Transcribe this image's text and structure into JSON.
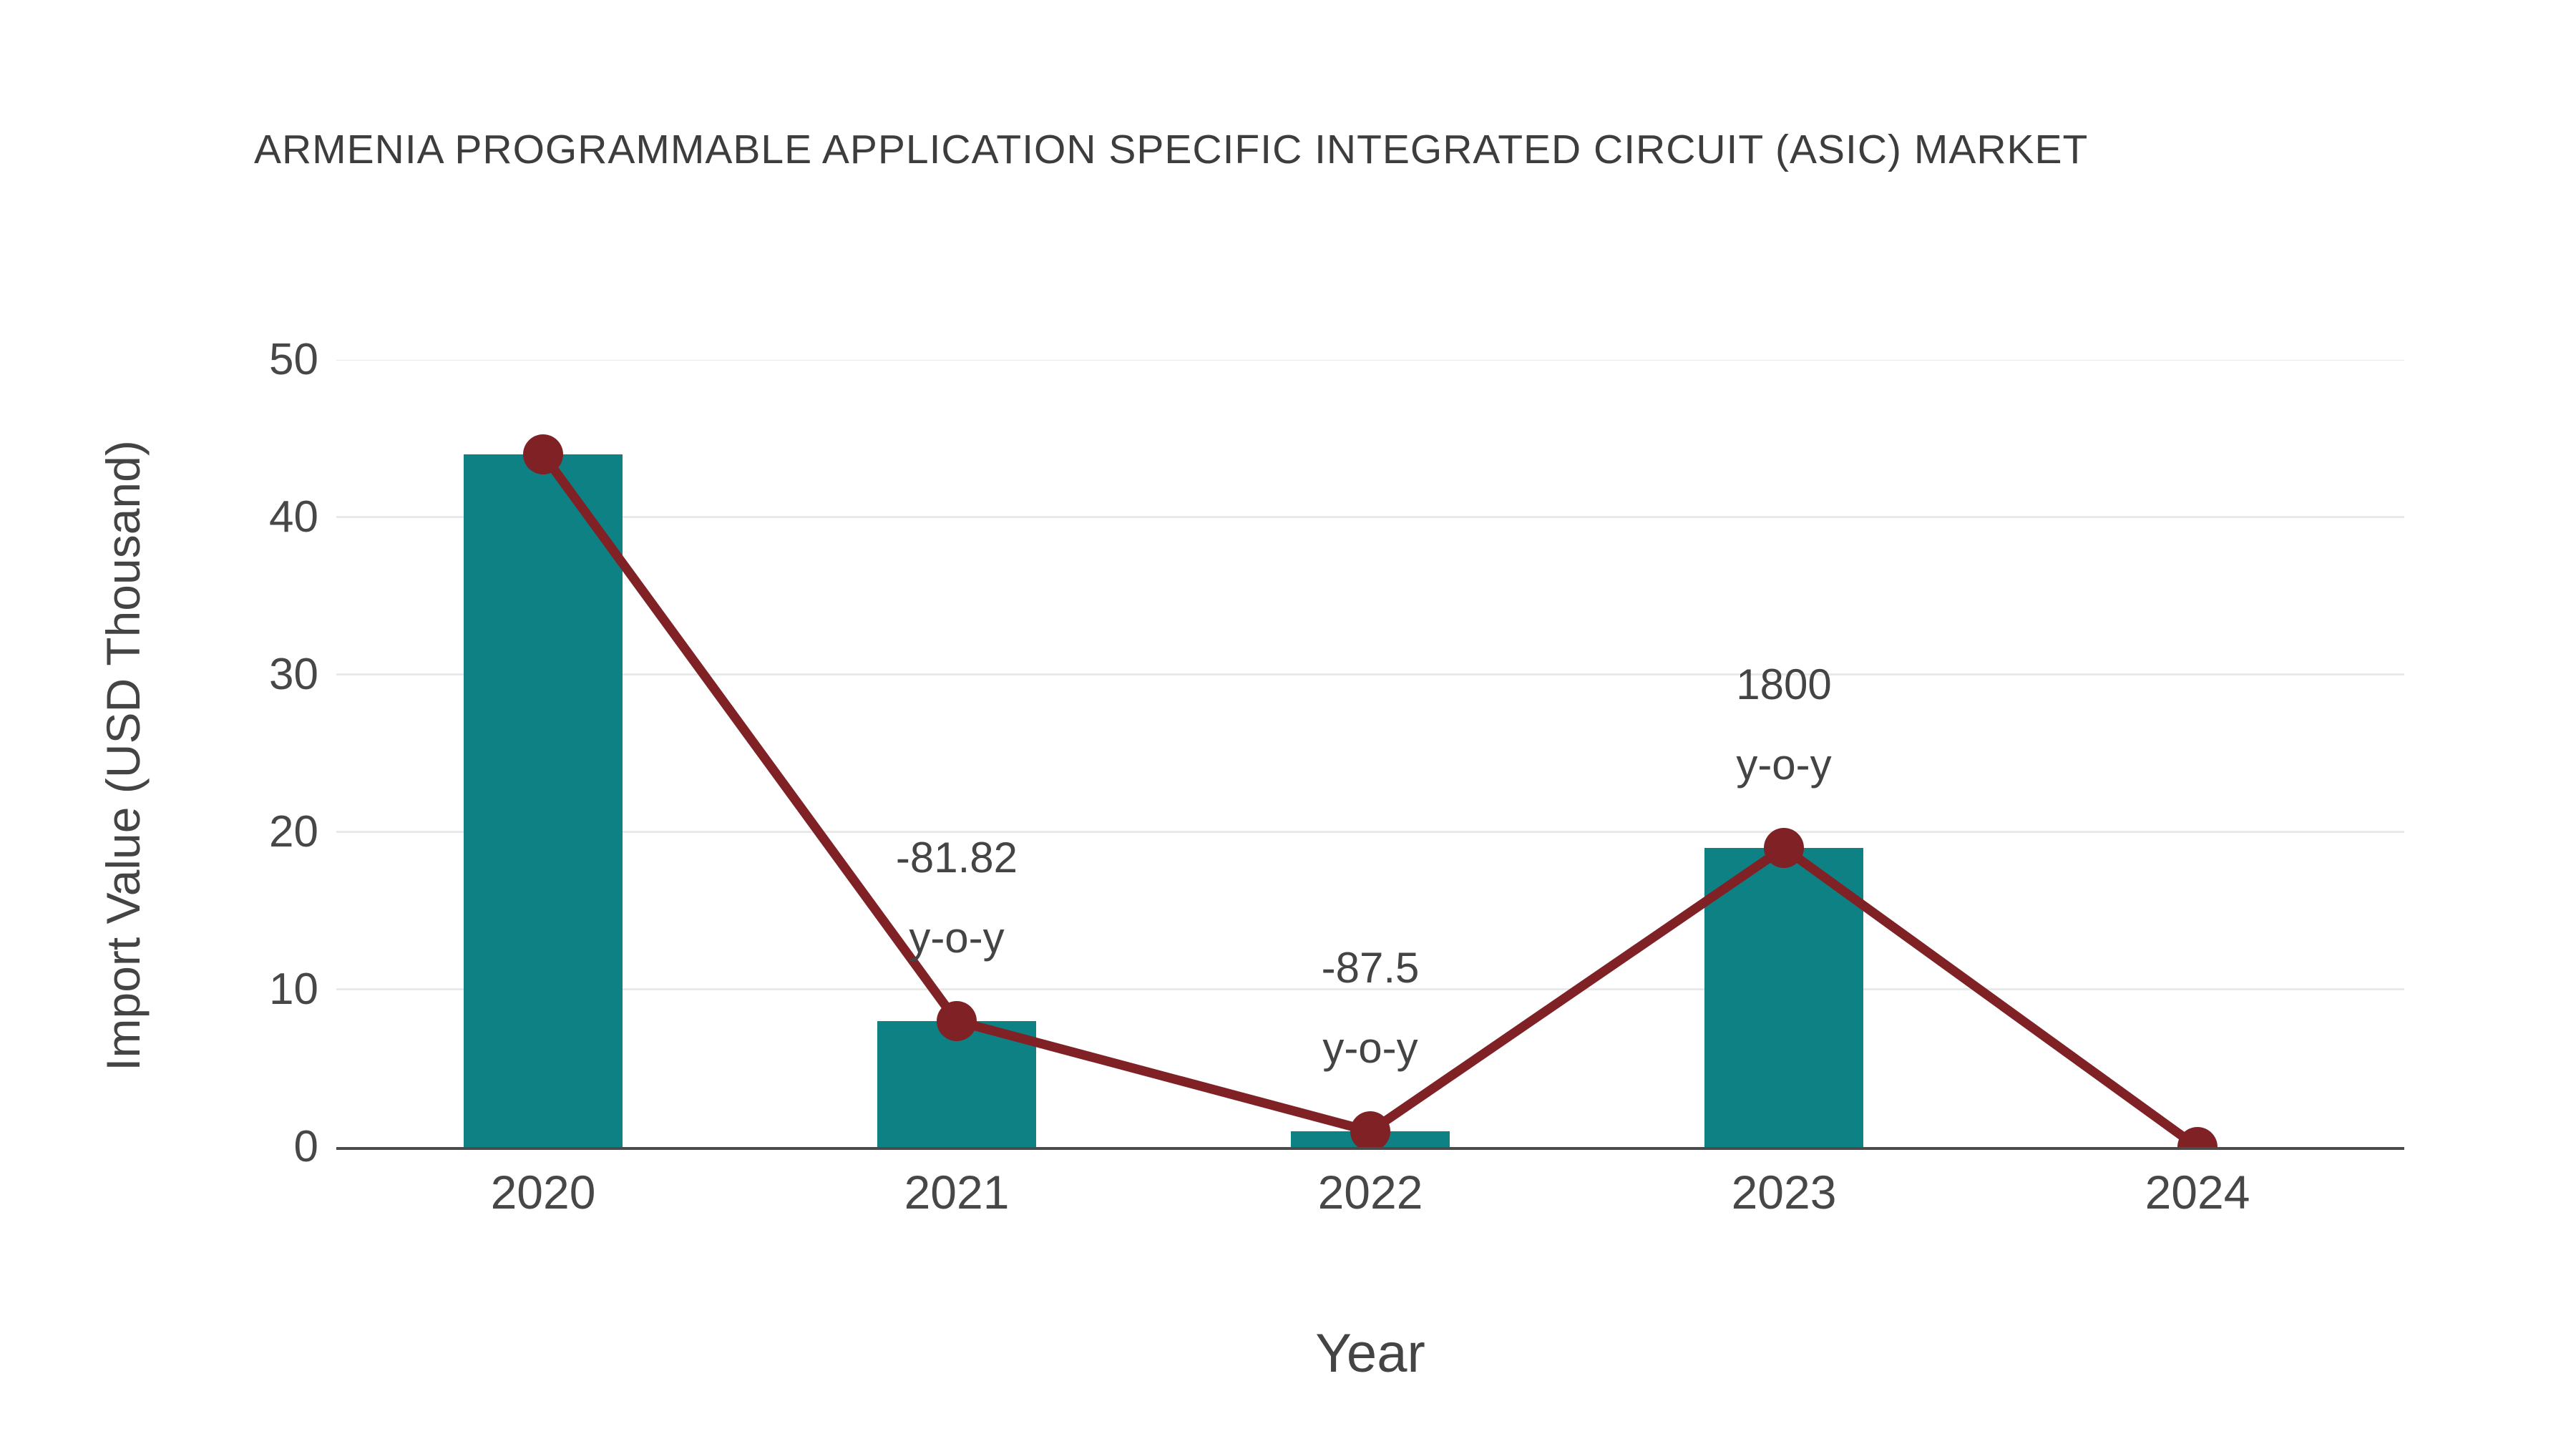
{
  "chart_data": {
    "type": "bar",
    "title": "ARMENIA PROGRAMMABLE APPLICATION SPECIFIC INTEGRATED CIRCUIT (ASIC) MARKET",
    "xlabel": "Year",
    "ylabel": "Import Value (USD Thousand)",
    "categories": [
      "2020",
      "2021",
      "2022",
      "2023",
      "2024"
    ],
    "series": [
      {
        "name": "Import Value bars",
        "type": "bar",
        "values": [
          44,
          8,
          1,
          19,
          0
        ],
        "color": "#0d8184"
      },
      {
        "name": "Import Value trend line",
        "type": "line",
        "values": [
          44,
          8,
          1,
          19,
          0
        ],
        "color": "#7f2125"
      }
    ],
    "annotations": [
      {
        "category": "2021",
        "line1": "-81.82",
        "line2": "y-o-y"
      },
      {
        "category": "2022",
        "line1": "-87.5",
        "line2": "y-o-y"
      },
      {
        "category": "2023",
        "line1": "1800",
        "line2": "y-o-y"
      }
    ],
    "yticks": [
      0,
      10,
      20,
      30,
      40,
      50
    ],
    "ylim": [
      0,
      50
    ],
    "grid": true,
    "legend": "none",
    "colors": {
      "bar": "#0d8184",
      "line": "#7f2125",
      "gridline": "#e9e9e9",
      "axis_line": "#4b4b4b",
      "text": "#444444"
    }
  }
}
